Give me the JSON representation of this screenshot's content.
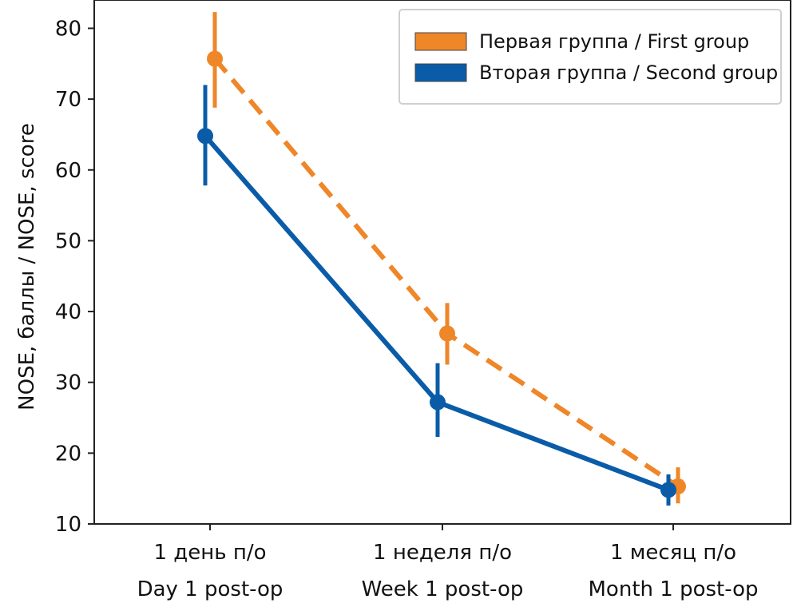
{
  "chart_data": {
    "type": "line",
    "categories": [
      {
        "line1": "1 день п/о",
        "line2": "Day 1 post-op"
      },
      {
        "line1": "1 неделя п/о",
        "line2": "Week 1 post-op"
      },
      {
        "line1": "1 месяц п/о",
        "line2": "Month 1 post-op"
      }
    ],
    "ylabel": "NOSE, баллы / NOSE, score",
    "xlabel": "",
    "ylim": [
      10,
      84
    ],
    "yticks": [
      "10",
      "20",
      "30",
      "40",
      "50",
      "60",
      "70",
      "80"
    ],
    "grid": false,
    "legend_position": "top-right",
    "series": [
      {
        "name": "Первая группа / First group",
        "color": "#EF8628",
        "line_style": "dashed",
        "values": [
          75.7,
          36.9,
          15.3
        ],
        "error_low": [
          68.8,
          32.5,
          12.9
        ],
        "error_high": [
          82.3,
          41.2,
          18.0
        ]
      },
      {
        "name": "Вторая группа / Second group",
        "color": "#0A5CA8",
        "line_style": "solid",
        "values": [
          64.8,
          27.2,
          14.8
        ],
        "error_low": [
          57.8,
          22.3,
          12.6
        ],
        "error_high": [
          72.0,
          32.7,
          17.0
        ]
      }
    ]
  }
}
